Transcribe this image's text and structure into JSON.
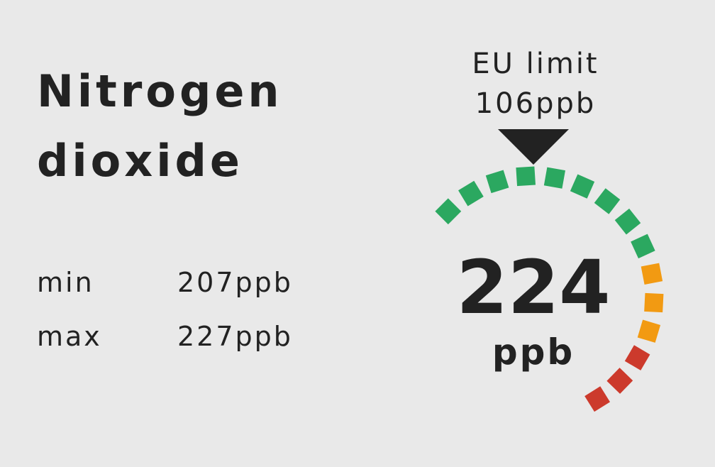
{
  "title": {
    "line1": "Nitrogen",
    "line2": "dioxide"
  },
  "stats": {
    "min_label": "min",
    "min_value": "207ppb",
    "max_label": "max",
    "max_value": "227ppb"
  },
  "limit": {
    "label": "EU limit",
    "value": "106ppb"
  },
  "reading": {
    "value": "224",
    "unit": "ppb"
  },
  "gauge": {
    "segment_count": 15,
    "colors": {
      "good": "#2ba860",
      "moderate": "#f29a12",
      "bad": "#cc3a2c"
    },
    "segment_levels": [
      "good",
      "good",
      "good",
      "good",
      "good",
      "good",
      "good",
      "good",
      "good",
      "moderate",
      "moderate",
      "moderate",
      "bad",
      "bad",
      "bad"
    ],
    "pointer_icon": "triangle-down-icon"
  }
}
